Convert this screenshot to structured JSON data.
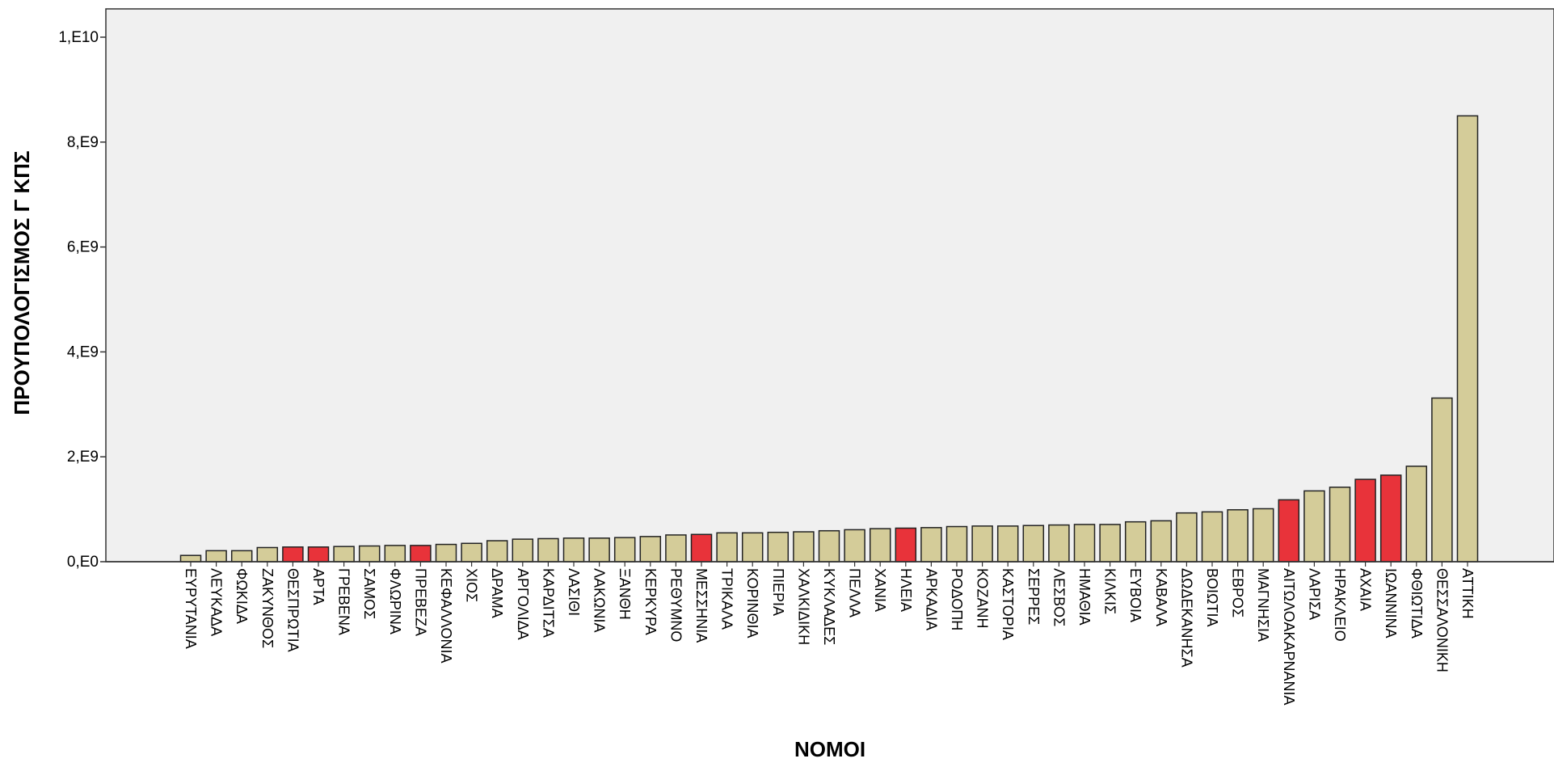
{
  "chart_data": {
    "type": "bar",
    "title": "",
    "xlabel": "ΝΟΜΟΙ",
    "ylabel": "ΠΡΟΥΠΟΛΟΓΙΣΜΟΣ Γ ΚΠΣ",
    "ylim": [
      0,
      10500000000
    ],
    "y_ticks": [
      {
        "value": 0,
        "label": "0,E0"
      },
      {
        "value": 2000000000,
        "label": "2,E9"
      },
      {
        "value": 4000000000,
        "label": "4,E9"
      },
      {
        "value": 6000000000,
        "label": "6,E9"
      },
      {
        "value": 8000000000,
        "label": "8,E9"
      },
      {
        "value": 10000000000,
        "label": "1,E10"
      }
    ],
    "grid": false,
    "legend": "none",
    "colors": {
      "bar": "#d4cc99",
      "highlight": "#e8333a",
      "bar_stroke": "#222222",
      "plot_bg": "#f0f0f0"
    },
    "categories": [
      "ΕΥΡΥΤΑΝΙΑ",
      "ΛΕΥΚΑΔΑ",
      "ΦΩΚΙΔΑ",
      "ΖΑΚΥΝΘΟΣ",
      "ΘΕΣΠΡΩΤΙΑ",
      "ΑΡΤΑ",
      "ΓΡΕΒΕΝΑ",
      "ΣΑΜΟΣ",
      "ΦΛΩΡΙΝΑ",
      "ΠΡΕΒΕΖΑ",
      "ΚΕΦΑΛΛΟΝΙΑ",
      "ΧΙΟΣ",
      "ΔΡΑΜΑ",
      "ΑΡΓΟΛΙΔΑ",
      "ΚΑΡΔΙΤΣΑ",
      "ΛΑΣΙΘΙ",
      "ΛΑΚΩΝΙΑ",
      "ΞΑΝΘΗ",
      "ΚΕΡΚΥΡΑ",
      "ΡΕΘΥΜΝΟ",
      "ΜΕΣΣΗΝΙΑ",
      "ΤΡΙΚΑΛΑ",
      "ΚΟΡΙΝΘΙΑ",
      "ΠΙΕΡΙΑ",
      "ΧΑΛΚΙΔΙΚΗ",
      "ΚΥΚΛΑΔΕΣ",
      "ΠΕΛΛΑ",
      "ΧΑΝΙΑ",
      "ΗΛΕΙΑ",
      "ΑΡΚΑΔΙΑ",
      "ΡΟΔΟΠΗ",
      "ΚΟΖΑΝΗ",
      "ΚΑΣΤΟΡΙΑ",
      "ΣΕΡΡΕΣ",
      "ΛΕΣΒΟΣ",
      "ΗΜΑΘΙΑ",
      "ΚΙΛΚΙΣ",
      "ΕΥΒΟΙΑ",
      "ΚΑΒΑΛΑ",
      "ΔΩΔΕΚΑΝΗΣΑ",
      "ΒΟΙΩΤΙΑ",
      "ΕΒΡΟΣ",
      "ΜΑΓΝΗΣΙΑ",
      "ΑΙΤΩΛΟΑΚΑΡΝΑΝΙΑ",
      "ΛΑΡΙΣΑ",
      "ΗΡΑΚΛΕΙΟ",
      "ΑΧΑΙΑ",
      "ΙΩΑΝΝΙΝΑ",
      "ΦΘΙΩΤΙΔΑ",
      "ΘΕΣΣΑΛΟΝΙΚΗ",
      "ΑΤΤΙΚΗ"
    ],
    "values": [
      120000000,
      210000000,
      210000000,
      270000000,
      280000000,
      280000000,
      290000000,
      300000000,
      310000000,
      310000000,
      330000000,
      350000000,
      400000000,
      430000000,
      440000000,
      450000000,
      450000000,
      460000000,
      480000000,
      510000000,
      520000000,
      550000000,
      550000000,
      560000000,
      570000000,
      590000000,
      610000000,
      630000000,
      640000000,
      650000000,
      670000000,
      680000000,
      680000000,
      690000000,
      700000000,
      710000000,
      710000000,
      760000000,
      780000000,
      930000000,
      950000000,
      990000000,
      1010000000,
      1180000000,
      1350000000,
      1420000000,
      1570000000,
      1650000000,
      1820000000,
      3120000000,
      8500000000
    ],
    "highlighted": [
      "ΘΕΣΠΡΩΤΙΑ",
      "ΑΡΤΑ",
      "ΠΡΕΒΕΖΑ",
      "ΜΕΣΣΗΝΙΑ",
      "ΗΛΕΙΑ",
      "ΑΙΤΩΛΟΑΚΑΡΝΑΝΙΑ",
      "ΑΧΑΙΑ",
      "ΙΩΑΝΝΙΝΑ"
    ]
  }
}
